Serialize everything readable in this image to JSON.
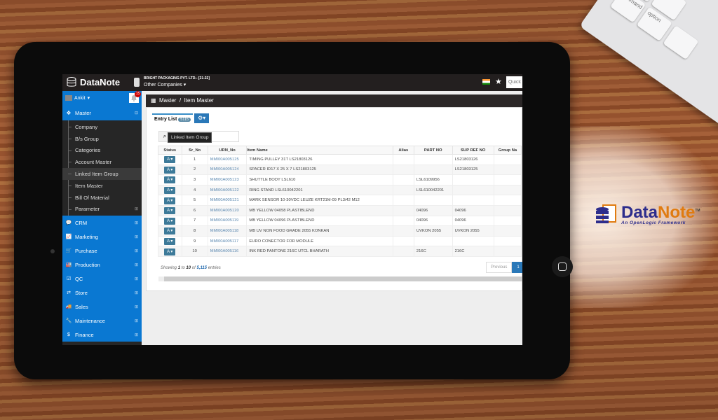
{
  "app": {
    "name": "DataNote",
    "company": "BRIGHT PACKAGING PVT. LTD.- [21-22]",
    "other_companies": "Other Companies",
    "quick_placeholder": "Quick"
  },
  "user": {
    "name": "Ankit",
    "notifications": "15"
  },
  "sidebar": {
    "master": "Master",
    "sub": [
      "Company",
      "B/s Group",
      "Categories",
      "Account Master",
      "Linked Item Group",
      "Item Master",
      "Bill Of Material",
      "Parameter"
    ],
    "modules": [
      {
        "label": "CRM",
        "icon": "comments-icon"
      },
      {
        "label": "Marketing",
        "icon": "chart-line-icon"
      },
      {
        "label": "Purchase",
        "icon": "cart-icon"
      },
      {
        "label": "Production",
        "icon": "factory-icon"
      },
      {
        "label": "QC",
        "icon": "checkbox-icon"
      },
      {
        "label": "Store",
        "icon": "exchange-icon"
      },
      {
        "label": "Sales",
        "icon": "truck-icon"
      },
      {
        "label": "Maintenance",
        "icon": "wrench-icon"
      },
      {
        "label": "Finance",
        "icon": "dollar-icon"
      }
    ]
  },
  "tooltip": "Linked Item Group",
  "breadcrumb": {
    "root": "Master",
    "sep": "/",
    "current": "Item Master"
  },
  "tabs": {
    "entry_list": "Entry List",
    "count": "5115"
  },
  "table": {
    "columns": [
      "Status",
      "Sr_No",
      "URN_No",
      "Item Name",
      "Alias",
      "PART NO",
      "SUP REF NO",
      "Group Na"
    ],
    "rows": [
      [
        "A",
        "1",
        "MMI00A005125",
        "TIMING PULLEY 31T LS21803126",
        "",
        "",
        "LS21803126",
        ""
      ],
      [
        "A",
        "2",
        "MMI00A005124",
        "SPACER ID17 X 25 X 7 LS21803125",
        "",
        "",
        "LS21803125",
        ""
      ],
      [
        "A",
        "3",
        "MMI00A005123",
        "SHUTTLE BODY LSL610",
        "",
        "LSL6109956",
        "",
        ""
      ],
      [
        "A",
        "4",
        "MMI00A005122",
        "RING STAND LSL610042201",
        "",
        "LSL610042201",
        "",
        ""
      ],
      [
        "A",
        "5",
        "MMI00A005121",
        "MARK SENSOR 10-30VDC LEUZE KRT21M-09 PL3/42 M12",
        "",
        "",
        "",
        ""
      ],
      [
        "A",
        "6",
        "MMI00A005120",
        "MB YELLOW 04058 PLASTIBLEND",
        "",
        "04096",
        "04096",
        ""
      ],
      [
        "A",
        "7",
        "MMI00A005119",
        "MB YELLOW 04096 PLASTIBLEND",
        "",
        "04096",
        "04096",
        ""
      ],
      [
        "A",
        "8",
        "MMI00A005118",
        "MB UV NON FOOD GRADE 2055 KONKAN",
        "",
        "UVKON 2055",
        "UVKON 2055",
        ""
      ],
      [
        "A",
        "9",
        "MMI00A005117",
        "EURO CONECTOR FOR MODULE",
        "",
        "",
        "",
        ""
      ],
      [
        "A",
        "10",
        "MMI00A005116",
        "INK RED PANTONE 216C UTCL BHARATH",
        "",
        "216C",
        "216C",
        ""
      ]
    ]
  },
  "footer": {
    "showing": "Showing",
    "from": "1",
    "to_word": "to",
    "to": "10",
    "of_word": "of",
    "total": "5,115",
    "entries": "entries",
    "previous": "Previous",
    "page": "1"
  },
  "brand": {
    "name_a": "Data",
    "name_b": "Note",
    "tm": "TM",
    "tagline": "An OpenLogic Framework"
  },
  "keyboard": {
    "keys": [
      "command",
      "option"
    ]
  }
}
